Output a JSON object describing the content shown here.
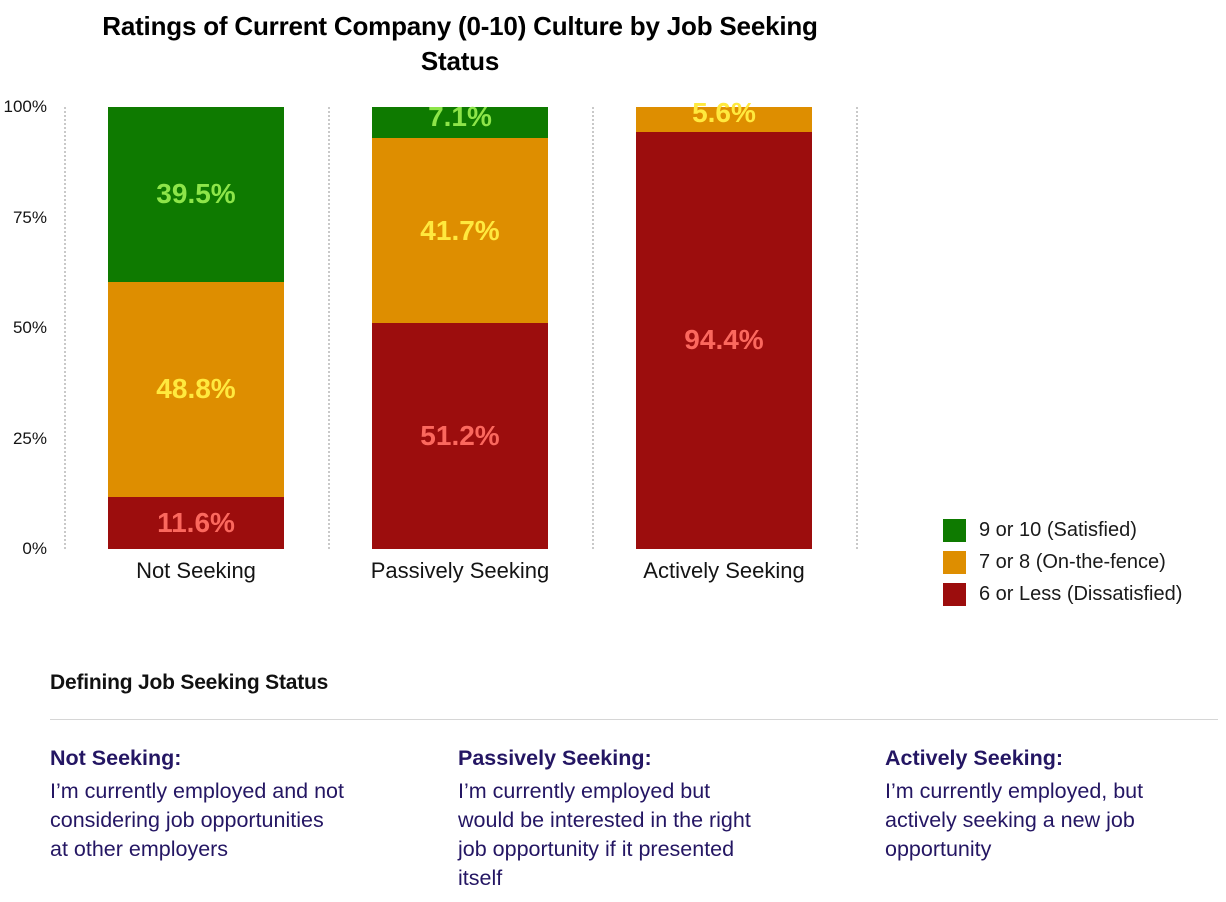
{
  "chart": {
    "title_lines": [
      "Ratings of Current Company (0-10) Culture by Job Seeking",
      "Status"
    ]
  },
  "chart_data": {
    "type": "bar",
    "stacked": true,
    "stack_order": "top-to-bottom",
    "title": "Ratings of Current Company (0-10) Culture by Job Seeking Status",
    "categories": [
      "Not Seeking",
      "Passively Seeking",
      "Actively Seeking"
    ],
    "series": [
      {
        "name": "9 or 10 (Satisfied)",
        "color": "#0e7a00",
        "label_color": "#8de549",
        "values": [
          39.5,
          7.1,
          0
        ]
      },
      {
        "name": "7 or 8 (On-the-fence)",
        "color": "#de8e00",
        "label_color": "#ffe93e",
        "values": [
          48.8,
          41.7,
          5.6
        ]
      },
      {
        "name": "6 or Less (Dissatisfied)",
        "color": "#9c0d0d",
        "label_color": "#fb685e",
        "values": [
          11.6,
          51.2,
          94.4
        ]
      }
    ],
    "value_label_format": "percent-one-decimal",
    "y_ticks": [
      "100%",
      "75%",
      "50%",
      "25%",
      "0%"
    ],
    "ylim": [
      0,
      100
    ],
    "grid": "vertical-dotted",
    "legend_position": "right"
  },
  "definitions": {
    "heading": "Defining Job Seeking Status",
    "items": [
      {
        "term": "Not Seeking:",
        "lines": [
          "I’m currently employed and not",
          "considering job opportunities",
          "at other employers"
        ]
      },
      {
        "term": "Passively Seeking:",
        "lines": [
          "I’m currently employed but",
          "would be interested in the right",
          "job opportunity if it presented",
          "itself"
        ]
      },
      {
        "term": "Actively Seeking:",
        "lines": [
          "I’m currently employed, but",
          "actively seeking a new job",
          "opportunity"
        ]
      }
    ]
  }
}
